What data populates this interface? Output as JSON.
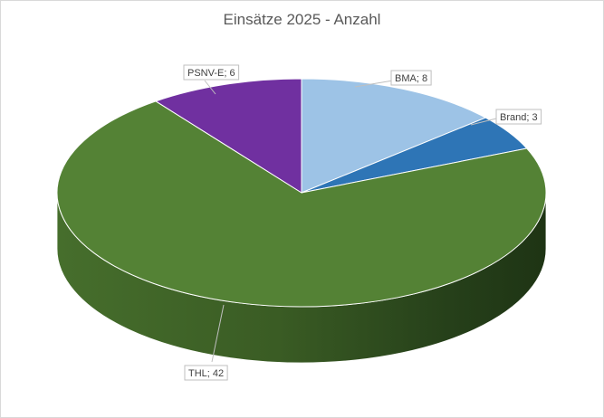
{
  "chart_data": {
    "type": "pie",
    "title": "Einsätze 2025 - Anzahl",
    "categories": [
      "BMA",
      "Brand",
      "THL",
      "PSNV-E"
    ],
    "values": [
      8,
      3,
      42,
      6
    ],
    "data_labels": [
      "BMA; 8",
      "Brand; 3",
      "THL; 42",
      "PSNV-E; 6"
    ],
    "colors": [
      "#9dc3e6",
      "#2e75b6",
      "#548235",
      "#7030a0"
    ],
    "style": "3d-pie",
    "legend": "none"
  }
}
